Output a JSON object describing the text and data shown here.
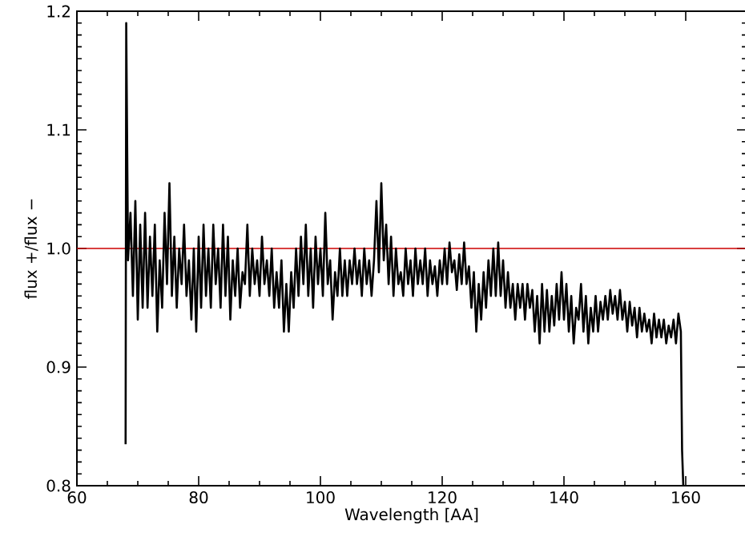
{
  "chart_data": {
    "type": "line",
    "xlabel": "Wavelength [AA]",
    "ylabel": "flux +/flux −",
    "xlim": [
      60,
      170
    ],
    "ylim": [
      0.8,
      1.2
    ],
    "xticks": [
      60,
      80,
      100,
      120,
      140,
      160
    ],
    "yticks": [
      {
        "value": 0.8,
        "label": "0.8"
      },
      {
        "value": 0.9,
        "label": "0.9"
      },
      {
        "value": 1.0,
        "label": "1.0"
      },
      {
        "value": 1.1,
        "label": "1.1"
      },
      {
        "value": 1.2,
        "label": "1.2"
      }
    ],
    "ref_lines": [
      {
        "axis": "y",
        "value": 1.0,
        "color": "#cc0000"
      }
    ],
    "series": [
      {
        "color": "#000000",
        "x": [
          68.0,
          68.1,
          68.4,
          68.8,
          69.2,
          69.6,
          70.0,
          70.4,
          70.8,
          71.2,
          71.6,
          72.0,
          72.4,
          72.8,
          73.2,
          73.6,
          74.0,
          74.4,
          74.8,
          75.2,
          75.6,
          76.0,
          76.4,
          76.8,
          77.2,
          77.6,
          78.0,
          78.4,
          78.8,
          79.2,
          79.6,
          80.0,
          80.4,
          80.8,
          81.2,
          81.6,
          82.0,
          82.4,
          82.8,
          83.2,
          83.6,
          84.0,
          84.4,
          84.8,
          85.2,
          85.6,
          86.0,
          86.4,
          86.8,
          87.2,
          87.6,
          88.0,
          88.4,
          88.8,
          89.2,
          89.6,
          90.0,
          90.4,
          90.8,
          91.2,
          91.6,
          92.0,
          92.4,
          92.8,
          93.2,
          93.6,
          94.0,
          94.4,
          94.8,
          95.2,
          95.6,
          96.0,
          96.4,
          96.8,
          97.2,
          97.6,
          98.0,
          98.4,
          98.8,
          99.2,
          99.6,
          100.0,
          100.4,
          100.8,
          101.2,
          101.6,
          102.0,
          102.4,
          102.8,
          103.2,
          103.6,
          104.0,
          104.4,
          104.8,
          105.2,
          105.6,
          106.0,
          106.4,
          106.8,
          107.2,
          107.6,
          108.0,
          108.4,
          108.8,
          109.2,
          109.6,
          110.0,
          110.4,
          110.8,
          111.2,
          111.6,
          112.0,
          112.4,
          112.8,
          113.2,
          113.6,
          114.0,
          114.4,
          114.8,
          115.2,
          115.6,
          116.0,
          116.4,
          116.8,
          117.2,
          117.6,
          118.0,
          118.4,
          118.8,
          119.2,
          119.6,
          120.0,
          120.4,
          120.8,
          121.2,
          121.6,
          122.0,
          122.4,
          122.8,
          123.2,
          123.6,
          124.0,
          124.4,
          124.8,
          125.2,
          125.6,
          126.0,
          126.4,
          126.8,
          127.2,
          127.6,
          128.0,
          128.4,
          128.8,
          129.2,
          129.6,
          130.0,
          130.4,
          130.8,
          131.2,
          131.6,
          132.0,
          132.4,
          132.8,
          133.2,
          133.6,
          134.0,
          134.4,
          134.8,
          135.2,
          135.6,
          136.0,
          136.4,
          136.8,
          137.2,
          137.6,
          138.0,
          138.4,
          138.8,
          139.2,
          139.6,
          140.0,
          140.4,
          140.8,
          141.2,
          141.6,
          142.0,
          142.4,
          142.8,
          143.2,
          143.6,
          144.0,
          144.4,
          144.8,
          145.2,
          145.6,
          146.0,
          146.4,
          146.8,
          147.2,
          147.6,
          148.0,
          148.4,
          148.8,
          149.2,
          149.6,
          150.0,
          150.4,
          150.8,
          151.2,
          151.6,
          152.0,
          152.4,
          152.8,
          153.2,
          153.6,
          154.0,
          154.4,
          154.8,
          155.2,
          155.6,
          156.0,
          156.4,
          156.8,
          157.2,
          157.6,
          158.0,
          158.4,
          158.8,
          159.2,
          159.4,
          159.6
        ],
        "values": [
          0.835,
          1.19,
          0.99,
          1.03,
          0.96,
          1.04,
          0.94,
          1.02,
          0.95,
          1.03,
          0.95,
          1.01,
          0.96,
          1.02,
          0.93,
          0.99,
          0.95,
          1.03,
          0.97,
          1.055,
          0.96,
          1.01,
          0.95,
          1.0,
          0.97,
          1.02,
          0.96,
          0.99,
          0.94,
          1.0,
          0.93,
          1.01,
          0.95,
          1.02,
          0.96,
          1.0,
          0.95,
          1.02,
          0.97,
          1.0,
          0.95,
          1.02,
          0.96,
          1.01,
          0.94,
          0.99,
          0.96,
          1.0,
          0.95,
          0.98,
          0.97,
          1.02,
          0.96,
          1.0,
          0.97,
          0.99,
          0.96,
          1.01,
          0.97,
          0.99,
          0.96,
          1.0,
          0.95,
          0.98,
          0.95,
          0.99,
          0.93,
          0.97,
          0.93,
          0.98,
          0.95,
          1.0,
          0.96,
          1.01,
          0.97,
          1.02,
          0.96,
          1.0,
          0.95,
          1.01,
          0.97,
          1.0,
          0.96,
          1.03,
          0.97,
          0.99,
          0.94,
          0.98,
          0.96,
          1.0,
          0.96,
          0.99,
          0.96,
          0.99,
          0.97,
          1.0,
          0.97,
          0.99,
          0.96,
          1.0,
          0.97,
          0.99,
          0.96,
          0.99,
          1.04,
          0.98,
          1.055,
          0.99,
          1.02,
          0.97,
          1.01,
          0.96,
          1.0,
          0.97,
          0.98,
          0.96,
          1.0,
          0.97,
          0.99,
          0.96,
          1.0,
          0.97,
          0.99,
          0.97,
          1.0,
          0.96,
          0.99,
          0.97,
          0.985,
          0.96,
          0.99,
          0.97,
          1.0,
          0.97,
          1.005,
          0.98,
          0.99,
          0.965,
          0.995,
          0.97,
          1.005,
          0.97,
          0.985,
          0.95,
          0.98,
          0.93,
          0.97,
          0.94,
          0.98,
          0.95,
          0.99,
          0.96,
          1.0,
          0.96,
          1.005,
          0.96,
          0.99,
          0.95,
          0.98,
          0.95,
          0.97,
          0.94,
          0.97,
          0.95,
          0.97,
          0.94,
          0.97,
          0.95,
          0.965,
          0.93,
          0.96,
          0.92,
          0.97,
          0.93,
          0.965,
          0.93,
          0.96,
          0.935,
          0.97,
          0.94,
          0.98,
          0.94,
          0.97,
          0.93,
          0.96,
          0.92,
          0.95,
          0.94,
          0.97,
          0.93,
          0.96,
          0.92,
          0.95,
          0.93,
          0.96,
          0.93,
          0.955,
          0.94,
          0.96,
          0.94,
          0.965,
          0.945,
          0.96,
          0.94,
          0.965,
          0.94,
          0.955,
          0.93,
          0.955,
          0.935,
          0.95,
          0.925,
          0.95,
          0.93,
          0.945,
          0.93,
          0.94,
          0.92,
          0.945,
          0.925,
          0.94,
          0.925,
          0.94,
          0.92,
          0.935,
          0.925,
          0.94,
          0.92,
          0.945,
          0.93,
          0.83,
          0.8
        ]
      }
    ]
  }
}
